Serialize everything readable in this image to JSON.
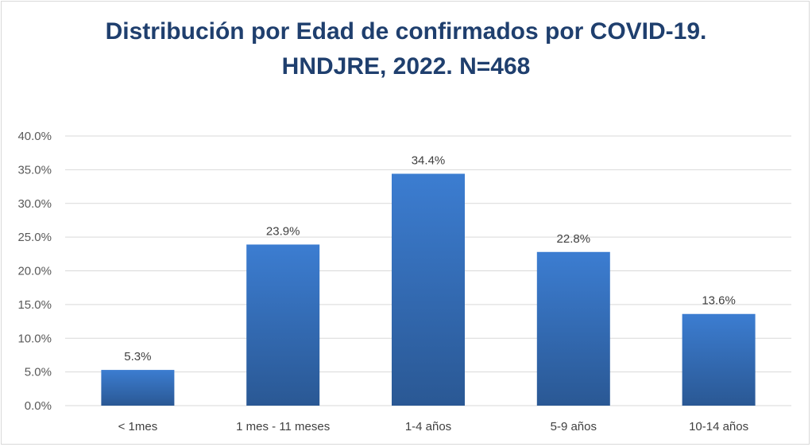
{
  "chart_data": {
    "type": "bar",
    "title": "Distribución por Edad de confirmados por COVID-19.",
    "subtitle": "HNDJRE, 2022. N=468",
    "categories": [
      "< 1mes",
      "1 mes - 11 meses",
      "1-4 años",
      "5-9 años",
      "10-14 años"
    ],
    "values": [
      5.3,
      23.9,
      34.4,
      22.8,
      13.6
    ],
    "data_labels": [
      "5.3%",
      "23.9%",
      "34.4%",
      "22.8%",
      "13.6%"
    ],
    "y_ticks": [
      "0.0%",
      "5.0%",
      "10.0%",
      "15.0%",
      "20.0%",
      "25.0%",
      "30.0%",
      "35.0%",
      "40.0%"
    ],
    "ylim": [
      0,
      40
    ],
    "xlabel": "",
    "ylabel": "",
    "grid": true,
    "legend": "none",
    "colors": {
      "bar_top": "#3c7dd1",
      "bar_bottom": "#2a5894",
      "title": "#1f3f6e",
      "grid": "#d9d9d9"
    }
  }
}
